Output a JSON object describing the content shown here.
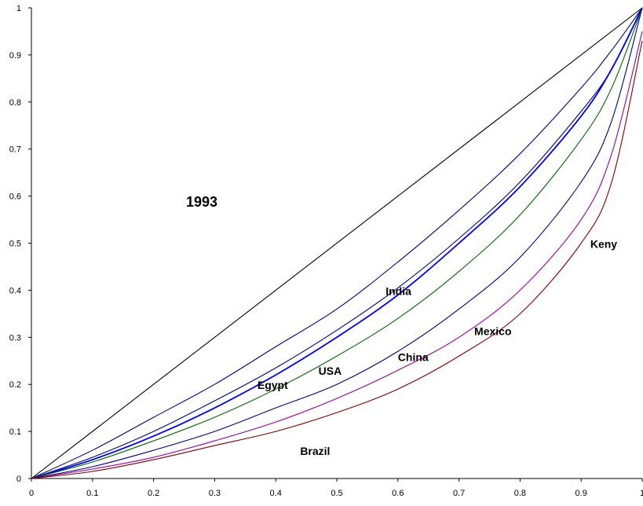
{
  "chart_data": {
    "type": "line",
    "title": "",
    "xlabel": "",
    "ylabel": "",
    "xlim": [
      0,
      1
    ],
    "ylim": [
      0,
      1
    ],
    "grid": false,
    "legend": "none",
    "annotation": "1993",
    "x_ticks": [
      "0",
      "0.1",
      "0.2",
      "0.3",
      "0.4",
      "0.5",
      "0.6",
      "0.7",
      "0.8",
      "0.9",
      "1"
    ],
    "y_ticks": [
      "0",
      "0.1",
      "0.2",
      "0.3",
      "0.4",
      "0.5",
      "0.6",
      "0.7",
      "0.8",
      "0.9",
      "1"
    ],
    "x": [
      0,
      0.1,
      0.2,
      0.3,
      0.4,
      0.5,
      0.6,
      0.7,
      0.8,
      0.9,
      0.95,
      1
    ],
    "series": [
      {
        "name": "",
        "color": "#000000",
        "values": [
          0,
          0.1,
          0.2,
          0.3,
          0.4,
          0.5,
          0.6,
          0.7,
          0.8,
          0.9,
          0.95,
          1
        ]
      },
      {
        "name": "India",
        "color": "#000080",
        "values": [
          0,
          0.06,
          0.13,
          0.2,
          0.28,
          0.36,
          0.46,
          0.57,
          0.69,
          0.83,
          0.91,
          1
        ]
      },
      {
        "name": "Egypt",
        "color": "#000080",
        "values": [
          0,
          0.045,
          0.1,
          0.165,
          0.235,
          0.315,
          0.405,
          0.51,
          0.63,
          0.78,
          0.87,
          1
        ]
      },
      {
        "name": "USA",
        "color": "#0000ee",
        "values": [
          0,
          0.04,
          0.09,
          0.15,
          0.22,
          0.3,
          0.39,
          0.5,
          0.62,
          0.77,
          0.87,
          1
        ]
      },
      {
        "name": "China",
        "color": "#006400",
        "values": [
          0,
          0.035,
          0.08,
          0.13,
          0.19,
          0.26,
          0.34,
          0.44,
          0.56,
          0.72,
          0.83,
          1
        ]
      },
      {
        "name": "Mexico",
        "color": "#000080",
        "values": [
          0,
          0.025,
          0.06,
          0.1,
          0.15,
          0.2,
          0.27,
          0.36,
          0.47,
          0.63,
          0.76,
          1
        ]
      },
      {
        "name": "Keny",
        "color": "#990099",
        "values": [
          0,
          0.02,
          0.045,
          0.08,
          0.12,
          0.17,
          0.23,
          0.3,
          0.4,
          0.55,
          0.69,
          0.95
        ]
      },
      {
        "name": "Brazil",
        "color": "#800000",
        "values": [
          0,
          0.015,
          0.04,
          0.07,
          0.1,
          0.14,
          0.19,
          0.26,
          0.35,
          0.5,
          0.63,
          0.93
        ]
      }
    ],
    "labels": [
      {
        "text": "India",
        "x": 0.58,
        "y": 0.39
      },
      {
        "text": "Egypt",
        "x": 0.37,
        "y": 0.19
      },
      {
        "text": "USA",
        "x": 0.47,
        "y": 0.22
      },
      {
        "text": "China",
        "x": 0.6,
        "y": 0.25
      },
      {
        "text": "Mexico",
        "x": 0.725,
        "y": 0.305
      },
      {
        "text": "Keny",
        "x": 0.915,
        "y": 0.49
      },
      {
        "text": "Brazil",
        "x": 0.44,
        "y": 0.05
      }
    ]
  }
}
